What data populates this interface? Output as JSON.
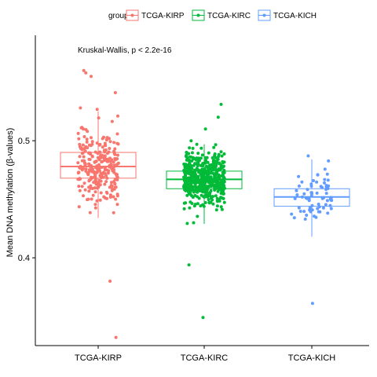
{
  "chart_data": {
    "type": "box-jitter",
    "title": "",
    "xlabel": "",
    "ylabel": "Mean DNA methylation (β-values)",
    "annotation": "Kruskal-Wallis, p < 2.2e-16",
    "legend": {
      "title": "groups",
      "position": "top"
    },
    "ylim": [
      0.325,
      0.59
    ],
    "yticks": [
      0.4,
      0.5
    ],
    "ytick_labels": [
      "0.4",
      "0.5"
    ],
    "categories": [
      "TCGA-KIRP",
      "TCGA-KIRC",
      "TCGA-KICH"
    ],
    "grid": false,
    "series": [
      {
        "name": "TCGA-KIRP",
        "color": "#F8766D",
        "box": {
          "lower_whisker": 0.434,
          "q1": 0.468,
          "median": 0.478,
          "q3": 0.49,
          "upper_whisker": 0.525
        },
        "n_points": 280,
        "outliers": [
          0.332,
          0.38,
          0.541,
          0.555,
          0.558,
          0.56
        ]
      },
      {
        "name": "TCGA-KIRC",
        "color": "#00BA38",
        "box": {
          "lower_whisker": 0.429,
          "q1": 0.459,
          "median": 0.467,
          "q3": 0.474,
          "upper_whisker": 0.497
        },
        "n_points": 520,
        "outliers": [
          0.349,
          0.394,
          0.51,
          0.52,
          0.531
        ]
      },
      {
        "name": "TCGA-KICH",
        "color": "#619CFF",
        "box": {
          "lower_whisker": 0.418,
          "q1": 0.444,
          "median": 0.452,
          "q3": 0.459,
          "upper_whisker": 0.484
        },
        "n_points": 70,
        "outliers": [
          0.361,
          0.487
        ]
      }
    ]
  }
}
